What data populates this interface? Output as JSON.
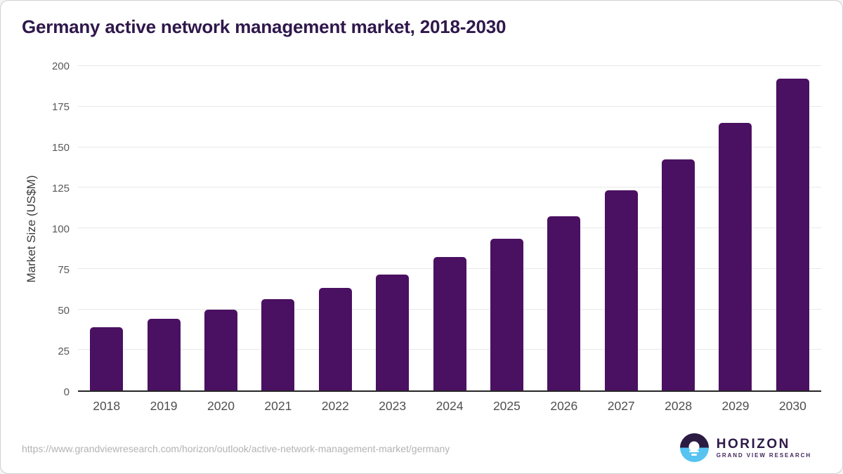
{
  "header": {
    "title": "Germany active network management market, 2018-2030"
  },
  "chart_data": {
    "type": "bar",
    "title": "Germany active network management market, 2018-2030",
    "categories": [
      "2018",
      "2019",
      "2020",
      "2021",
      "2022",
      "2023",
      "2024",
      "2025",
      "2026",
      "2027",
      "2028",
      "2029",
      "2030"
    ],
    "values": [
      39,
      44,
      49.6,
      56.1,
      63.3,
      71.6,
      82.1,
      93.6,
      107.4,
      123.4,
      142.5,
      165.1,
      192.1
    ],
    "xlabel": "",
    "ylabel": "Market Size (US$M)",
    "ylim": [
      0,
      200
    ],
    "yticks": [
      0,
      25,
      50,
      75,
      100,
      125,
      150,
      175,
      200
    ],
    "grid": true,
    "legend": false,
    "bar_color": "#4a1061"
  },
  "footer": {
    "source_url": "https://www.grandviewresearch.com/horizon/outlook/active-network-management-market/germany",
    "logo": {
      "brand": "HORIZON",
      "sub_brand": "GRAND VIEW RESEARCH"
    }
  },
  "colors": {
    "title_text": "#2f174b",
    "bar_fill": "#4a1061",
    "axis_line": "#262626",
    "grid_line": "#e8e8e8",
    "tick_text": "#595959",
    "url_text": "#b3b3b3",
    "logo_dark": "#2b1b43",
    "logo_blue": "#56c3f1",
    "logo_text": "#2e1a47",
    "logo_sub": "#41265c"
  }
}
